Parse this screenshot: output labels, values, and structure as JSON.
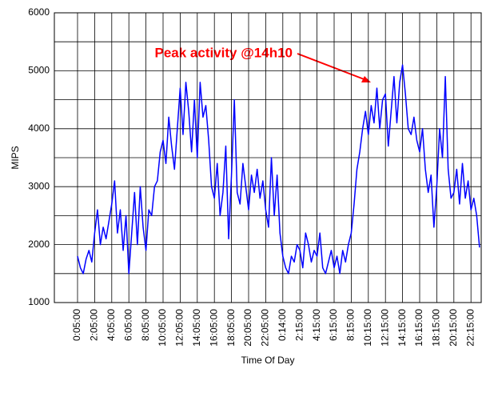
{
  "chart_data": {
    "type": "line",
    "annotation": "Peak activity @14h10",
    "xlabel": "Time Of Day",
    "ylabel": "MIPS",
    "ylim": [
      1000,
      6000
    ],
    "yticks": [
      1000,
      2000,
      3000,
      4000,
      5000,
      6000
    ],
    "ygrid": [
      1000,
      1500,
      2000,
      2500,
      3000,
      3500,
      4000,
      4500,
      5000,
      5500,
      6000
    ],
    "grid": true,
    "categories": [
      "0:05:00",
      null,
      null,
      null,
      null,
      null,
      "2:05:00",
      null,
      null,
      null,
      null,
      null,
      "4:05:00",
      null,
      null,
      null,
      null,
      null,
      "6:05:00",
      null,
      null,
      null,
      null,
      null,
      "8:05:00",
      null,
      null,
      null,
      null,
      null,
      "10:05:00",
      null,
      null,
      null,
      null,
      null,
      "12:05:00",
      null,
      null,
      null,
      null,
      null,
      "14:05:00",
      null,
      null,
      null,
      null,
      null,
      "16:05:00",
      null,
      null,
      null,
      null,
      null,
      "18:05:00",
      null,
      null,
      null,
      null,
      null,
      "20:05:00",
      null,
      null,
      null,
      null,
      null,
      "22:05:00",
      null,
      null,
      null,
      null,
      null,
      "0:14:00",
      null,
      null,
      null,
      null,
      null,
      "2:15:00",
      null,
      null,
      null,
      null,
      null,
      "4:15:00",
      null,
      null,
      null,
      null,
      null,
      "6:15:00",
      null,
      null,
      null,
      null,
      null,
      "8:15:00",
      null,
      null,
      null,
      null,
      null,
      "10:15:00",
      null,
      null,
      null,
      null,
      null,
      "12:15:00",
      null,
      null,
      null,
      null,
      null,
      "14:15:00",
      null,
      null,
      null,
      null,
      null,
      "16:15:00",
      null,
      null,
      null,
      null,
      null,
      "18:15:00",
      null,
      null,
      null,
      null,
      null,
      "20:15:00",
      null,
      null,
      null,
      null,
      null,
      "22:15:00",
      null,
      null,
      null
    ],
    "series": [
      {
        "name": "MIPS",
        "color": "#0000ff",
        "values": [
          1800,
          1600,
          1500,
          1750,
          1900,
          1700,
          2200,
          2600,
          2000,
          2300,
          2100,
          2400,
          2700,
          3100,
          2200,
          2600,
          1900,
          2500,
          1500,
          2200,
          2900,
          2000,
          3000,
          2300,
          1900,
          2600,
          2500,
          3000,
          3100,
          3600,
          3800,
          3400,
          4200,
          3700,
          3300,
          4000,
          4700,
          3900,
          4800,
          4300,
          3600,
          4500,
          3500,
          4800,
          4200,
          4400,
          3800,
          3000,
          2800,
          3400,
          2500,
          2900,
          3700,
          2100,
          3200,
          4500,
          2900,
          2700,
          3400,
          3000,
          2600,
          3200,
          2900,
          3300,
          2800,
          3100,
          2600,
          2300,
          3500,
          2500,
          3200,
          2200,
          1800,
          1600,
          1500,
          1800,
          1700,
          2000,
          1900,
          1600,
          2200,
          2000,
          1700,
          1900,
          1800,
          2200,
          1600,
          1500,
          1700,
          1900,
          1600,
          1800,
          1500,
          1900,
          1700,
          2000,
          2200,
          2700,
          3300,
          3600,
          4000,
          4300,
          3900,
          4400,
          4100,
          4700,
          4000,
          4500,
          4600,
          3700,
          4300,
          4900,
          4100,
          4800,
          5100,
          4600,
          4000,
          3900,
          4200,
          3800,
          3600,
          4000,
          3300,
          2900,
          3200,
          2300,
          3000,
          4000,
          3500,
          4900,
          3300,
          2800,
          2900,
          3300,
          2700,
          3400,
          2800,
          3100,
          2600,
          2800,
          2500,
          1950
        ]
      }
    ]
  }
}
